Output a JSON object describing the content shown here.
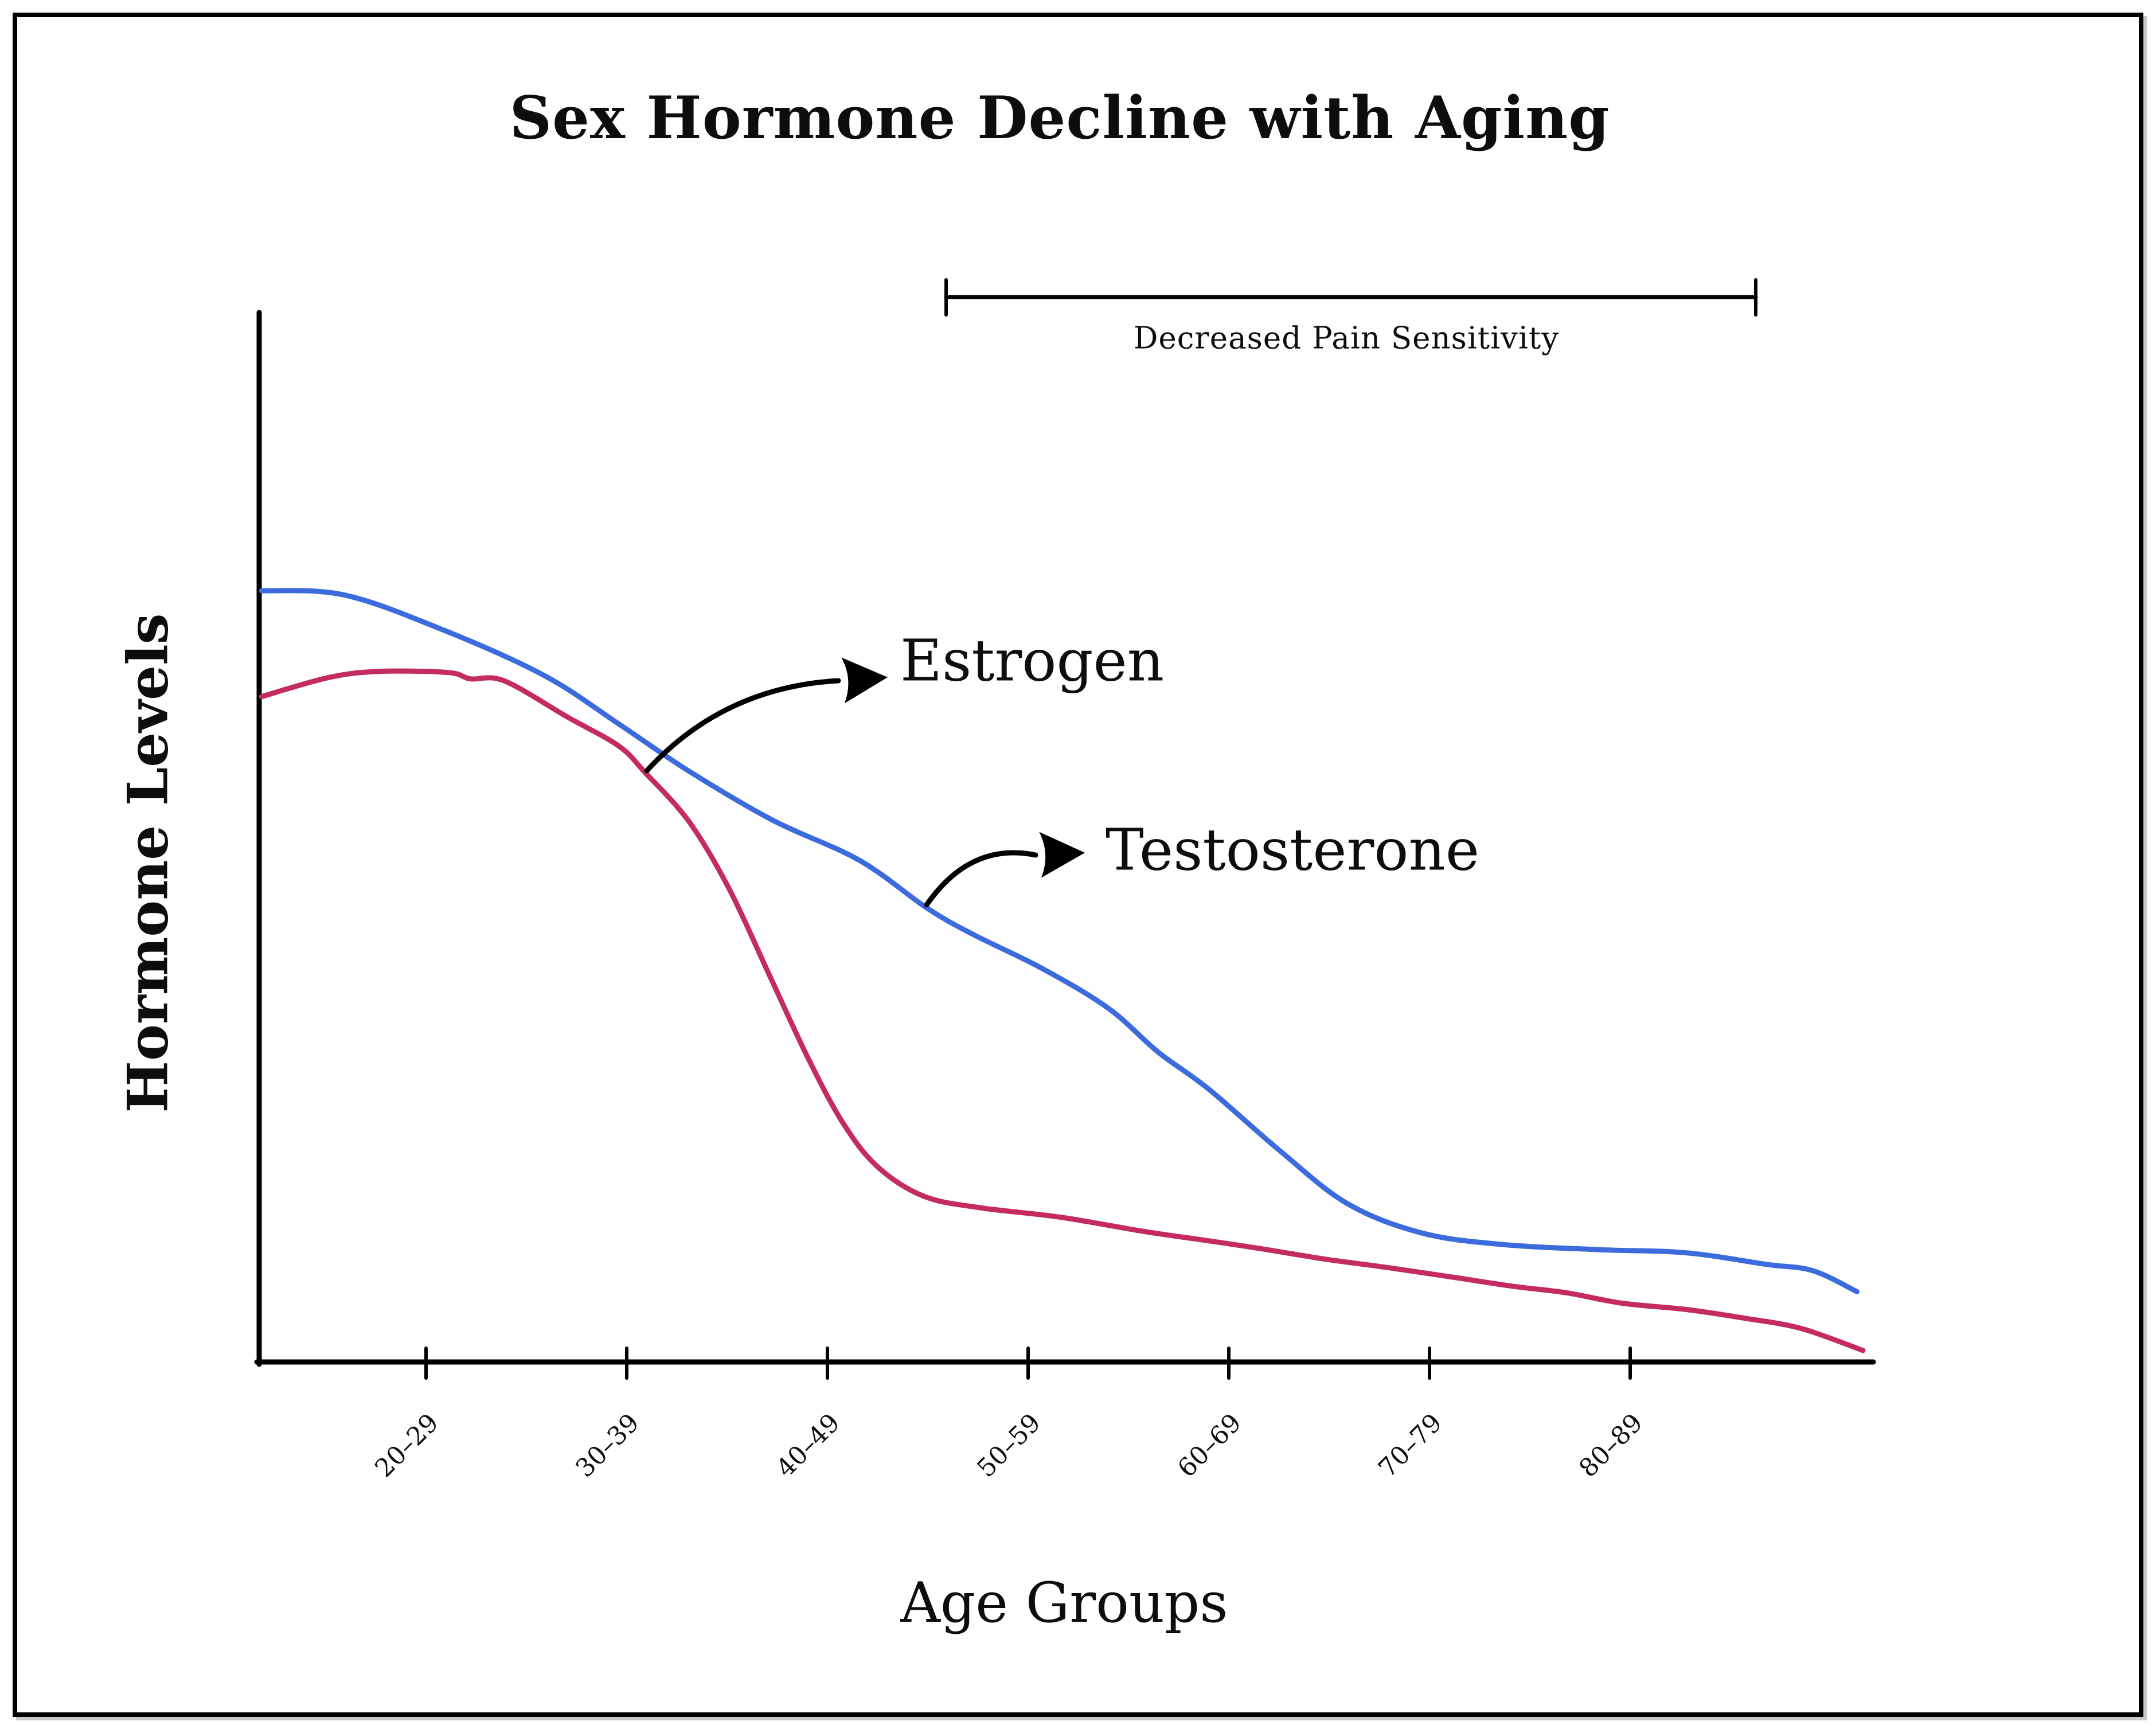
{
  "title": "Sex Hormone Decline with Aging",
  "annotations": {
    "estrogen": "Estrogen",
    "testosterone": "Testosterone",
    "bracket_label": "Decreased Pain Sensitivity"
  },
  "chart_data": {
    "type": "line",
    "title": "Sex Hormone Decline with Aging",
    "xlabel": "Age Groups",
    "ylabel": "Hormone Levels",
    "categories": [
      "20–29",
      "30–39",
      "40–49",
      "50–59",
      "60–69",
      "70–79",
      "80–89"
    ],
    "y_axis_numeric_labels": "none (relative hormone level, estimated 0–100 scale)",
    "grid": false,
    "legend": "none — series identified by black curved arrow annotations",
    "style": "hand-drawn xkcd-like, black axes, no tick numbers on y axis",
    "series": [
      {
        "name": "Testosterone",
        "color": "#3b6bdc",
        "values_at_categories": [
          70,
          60,
          50,
          38,
          24,
          12,
          10
        ],
        "points": [
          [
            -0.82,
            73.5
          ],
          [
            -0.41,
            73.1
          ],
          [
            0.08,
            69.8
          ],
          [
            0.59,
            65.4
          ],
          [
            0.96,
            60.8
          ],
          [
            1.31,
            56.3
          ],
          [
            1.73,
            51.6
          ],
          [
            2.16,
            47.8
          ],
          [
            2.5,
            43.2
          ],
          [
            2.73,
            40.7
          ],
          [
            3.07,
            37.5
          ],
          [
            3.4,
            33.7
          ],
          [
            3.65,
            29.5
          ],
          [
            3.9,
            26.0
          ],
          [
            4.25,
            20.2
          ],
          [
            4.59,
            15.1
          ],
          [
            4.96,
            12.3
          ],
          [
            5.36,
            11.2
          ],
          [
            5.85,
            10.7
          ],
          [
            6.28,
            10.4
          ],
          [
            6.68,
            9.3
          ],
          [
            6.91,
            8.7
          ],
          [
            7.13,
            6.7
          ]
        ]
      },
      {
        "name": "Estrogen",
        "color": "#c52b63",
        "values_at_categories": [
          66,
          58,
          25,
          14,
          11,
          9,
          5
        ],
        "points": [
          [
            -0.82,
            63.4
          ],
          [
            -0.49,
            65.2
          ],
          [
            -0.24,
            65.8
          ],
          [
            0.11,
            65.7
          ],
          [
            0.22,
            65.1
          ],
          [
            0.39,
            64.9
          ],
          [
            0.71,
            61.4
          ],
          [
            0.96,
            58.7
          ],
          [
            1.09,
            56.2
          ],
          [
            1.31,
            51.5
          ],
          [
            1.51,
            45.1
          ],
          [
            1.71,
            36.9
          ],
          [
            1.91,
            28.7
          ],
          [
            2.08,
            22.7
          ],
          [
            2.25,
            18.6
          ],
          [
            2.48,
            15.8
          ],
          [
            2.76,
            14.7
          ],
          [
            3.16,
            13.8
          ],
          [
            3.59,
            12.4
          ],
          [
            3.88,
            11.6
          ],
          [
            4.16,
            10.8
          ],
          [
            4.48,
            9.8
          ],
          [
            4.79,
            9.0
          ],
          [
            5.11,
            8.1
          ],
          [
            5.42,
            7.2
          ],
          [
            5.68,
            6.6
          ],
          [
            5.96,
            5.6
          ],
          [
            6.28,
            5.0
          ],
          [
            6.56,
            4.2
          ],
          [
            6.85,
            3.2
          ],
          [
            7.16,
            1.1
          ]
        ],
        "note": "steep decline between 40–49 and 50–59 (menopause)"
      }
    ],
    "annotations": {
      "bracket": {
        "label": "Decreased Pain Sensitivity",
        "position": "top of chart",
        "span_category_units": [
          2.6,
          6.6
        ],
        "span_ages_approx": "~46 to ~86+"
      },
      "arrow_estrogen": "curved black arrow from pink curve pointing to the word Estrogen",
      "arrow_testosterone": "curved black arrow from blue curve pointing to the word Testosterone"
    }
  }
}
